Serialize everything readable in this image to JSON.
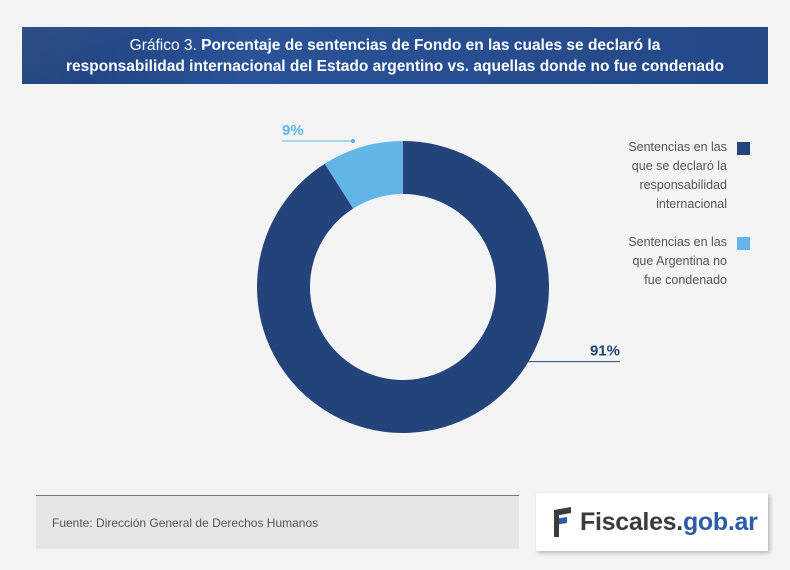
{
  "header": {
    "prefix": "Gráfico 3.",
    "title_line1": "Porcentaje de sentencias de Fondo en las cuales se declaró la",
    "title_line2": "responsabilidad internacional del Estado argentino vs. aquellas donde no fue condenado"
  },
  "chart_data": {
    "type": "pie",
    "donut": true,
    "categories": [
      "Sentencias en las que se declaró la responsabilidad internacional",
      "Sentencias en las que Argentina no fue condenado"
    ],
    "values": [
      91,
      9
    ],
    "value_labels": [
      "91%",
      "9%"
    ],
    "colors": [
      "#24437b",
      "#62b6e7"
    ],
    "legend_position": "right"
  },
  "legend": {
    "items": [
      {
        "label": "Sentencias en las que se declaró la responsabilidad internacional",
        "color": "#24437b"
      },
      {
        "label": "Sentencias en las que Argentina no fue condenado",
        "color": "#62b6e7"
      }
    ]
  },
  "footer": {
    "source": "Fuente: Dirección General de Derechos Humanos",
    "logo_part1": "Fiscales.",
    "logo_part2": "gob.ar"
  },
  "colors": {
    "header_bg": "#244a8a",
    "dark_blue": "#24437b",
    "light_blue": "#62b6e7",
    "logo_blue": "#2d5ca8",
    "logo_gray": "#3b3b3b"
  }
}
